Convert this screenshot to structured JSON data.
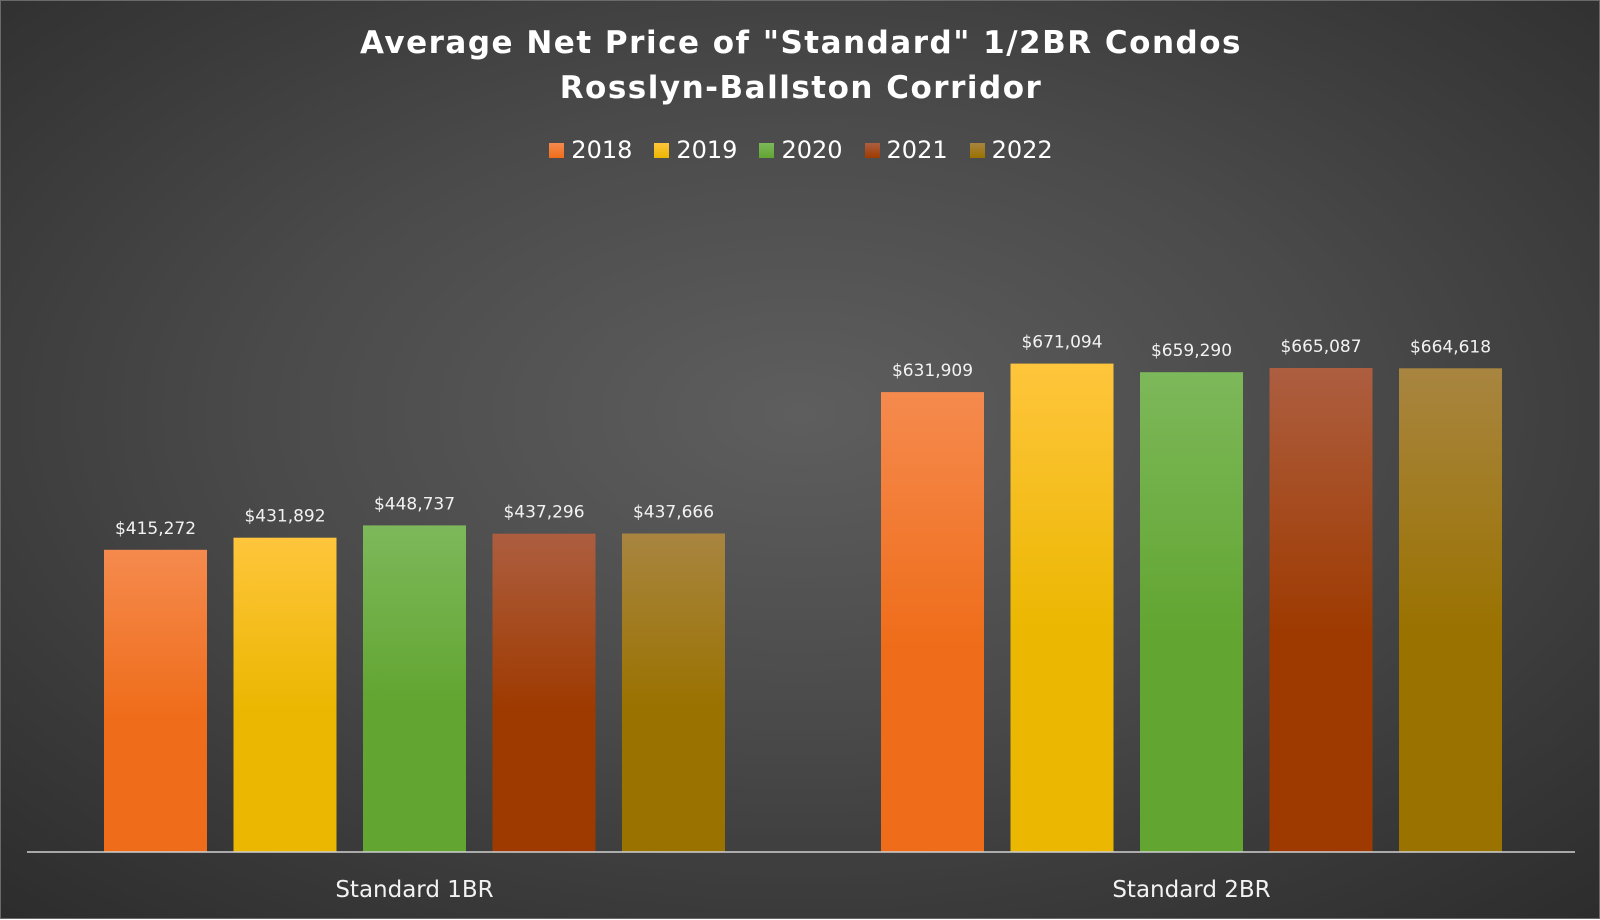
{
  "chart_data": {
    "type": "bar",
    "title": [
      "Average Net Price of \"Standard\" 1/2BR Condos",
      "Rosslyn-Ballston Corridor"
    ],
    "categories": [
      "Standard 1BR",
      "Standard 2BR"
    ],
    "series": [
      {
        "name": "2018",
        "values": [
          415272,
          631909
        ],
        "labels": [
          "$415,272",
          "$631,909"
        ],
        "color_top": "#f58a4e",
        "color_bottom": "#ef6d1a"
      },
      {
        "name": "2019",
        "values": [
          431892,
          671094
        ],
        "labels": [
          "$431,892",
          "$671,094"
        ],
        "color_top": "#ffc53c",
        "color_bottom": "#ebb700"
      },
      {
        "name": "2020",
        "values": [
          448737,
          659290
        ],
        "labels": [
          "$448,737",
          "$659,290"
        ],
        "color_top": "#7db85a",
        "color_bottom": "#62a531"
      },
      {
        "name": "2021",
        "values": [
          437296,
          665087
        ],
        "labels": [
          "$437,296",
          "$665,087"
        ],
        "color_top": "#ad5e40",
        "color_bottom": "#9e3a00"
      },
      {
        "name": "2022",
        "values": [
          437666,
          664618
        ],
        "labels": [
          "$437,666",
          "$664,618"
        ],
        "color_top": "#a88540",
        "color_bottom": "#9a7200"
      }
    ],
    "legend_position": "top",
    "grid": false,
    "ylim": [
      0,
      900000
    ],
    "xlabel": "",
    "ylabel": ""
  }
}
